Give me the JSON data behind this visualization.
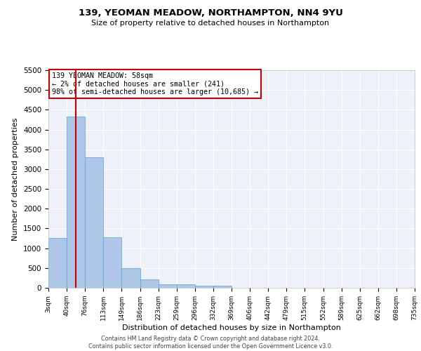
{
  "title": "139, YEOMAN MEADOW, NORTHAMPTON, NN4 9YU",
  "subtitle": "Size of property relative to detached houses in Northampton",
  "xlabel": "Distribution of detached houses by size in Northampton",
  "ylabel": "Number of detached properties",
  "annotation_title": "139 YEOMAN MEADOW: 58sqm",
  "annotation_line1": "← 2% of detached houses are smaller (241)",
  "annotation_line2": "98% of semi-detached houses are larger (10,685) →",
  "footer_line1": "Contains HM Land Registry data © Crown copyright and database right 2024.",
  "footer_line2": "Contains public sector information licensed under the Open Government Licence v3.0.",
  "property_size": 58,
  "bin_edges": [
    3,
    40,
    76,
    113,
    149,
    186,
    223,
    259,
    296,
    332,
    369,
    406,
    442,
    479,
    515,
    552,
    589,
    625,
    662,
    698,
    735
  ],
  "bar_heights": [
    1260,
    4330,
    3300,
    1280,
    490,
    210,
    95,
    80,
    55,
    55,
    0,
    0,
    0,
    0,
    0,
    0,
    0,
    0,
    0,
    0
  ],
  "bar_color": "#aec6e8",
  "bar_edge_color": "#5a9fd4",
  "red_line_color": "#cc0000",
  "annotation_box_color": "#ffffff",
  "annotation_box_edge": "#cc0000",
  "background_color": "#eef2f8",
  "ylim": [
    0,
    5500
  ],
  "yticks": [
    0,
    500,
    1000,
    1500,
    2000,
    2500,
    3000,
    3500,
    4000,
    4500,
    5000,
    5500
  ]
}
